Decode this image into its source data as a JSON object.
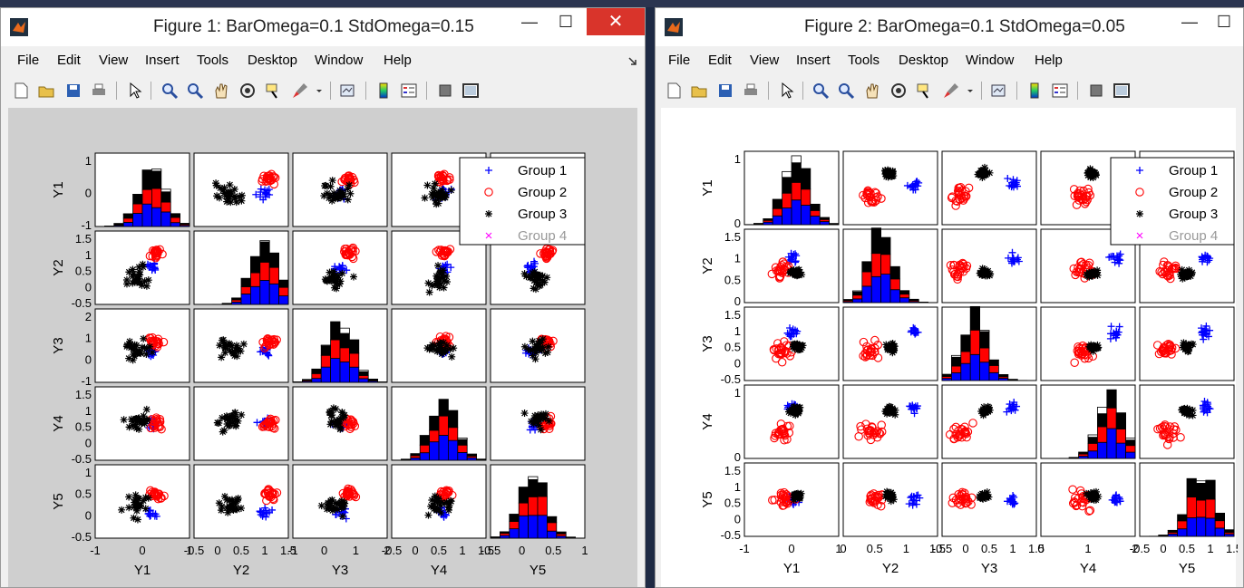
{
  "windows": [
    {
      "title": "Figure 1: BarOmega=0.1 StdOmega=0.15",
      "menu": [
        "File",
        "Edit",
        "View",
        "Insert",
        "Tools",
        "Desktop",
        "Window",
        "Help"
      ],
      "controls": {
        "minimize": "—",
        "maximize": "☐",
        "close": "✕"
      },
      "labels": [
        "Y1",
        "Y2",
        "Y3",
        "Y4",
        "Y5"
      ],
      "yticks": [
        [
          "1",
          "0",
          "-1"
        ],
        [
          "1.5",
          "1",
          "0.5",
          "0",
          "-0.5"
        ],
        [
          "2",
          "1",
          "0",
          "-1"
        ],
        [
          "1.5",
          "1",
          "0.5",
          "0",
          "-0.5"
        ],
        [
          "1",
          "0.5",
          "0",
          "-0.5"
        ]
      ],
      "xticks": [
        [
          "-1",
          "0",
          "1"
        ],
        [
          "-0.5",
          "0",
          "0.5",
          "1",
          "1.5"
        ],
        [
          "-1",
          "0",
          "1",
          "2"
        ],
        [
          "-0.5",
          "0",
          "0.5",
          "1",
          "1.5"
        ],
        [
          "-0.5",
          "0",
          "0.5",
          "1"
        ]
      ],
      "legend": [
        "Group 1",
        "Group 2",
        "Group 3",
        "Group 4"
      ],
      "colors": {
        "group1": "#0000ff",
        "group2": "#ff0000",
        "group3": "#000000",
        "group4": "#ff00ff",
        "canvas": "#cfcfcf"
      }
    },
    {
      "title": "Figure 2: BarOmega=0.1 StdOmega=0.05",
      "menu": [
        "File",
        "Edit",
        "View",
        "Insert",
        "Tools",
        "Desktop",
        "Window",
        "Help"
      ],
      "controls": {
        "minimize": "—",
        "maximize": "☐"
      },
      "labels": [
        "Y1",
        "Y2",
        "Y3",
        "Y4",
        "Y5"
      ],
      "yticks": [
        [
          "1",
          "0"
        ],
        [
          "1.5",
          "1",
          "0.5",
          "0"
        ],
        [
          "1.5",
          "1",
          "0.5",
          "0",
          "-0.5"
        ],
        [
          "1",
          "0"
        ],
        [
          "1.5",
          "1",
          "0.5",
          "0",
          "-0.5"
        ]
      ],
      "xticks": [
        [
          "-1",
          "0",
          "1"
        ],
        [
          "0",
          "0.5",
          "1",
          "1.5"
        ],
        [
          "-0.5",
          "0",
          "0.5",
          "1",
          "1.5"
        ],
        [
          "0",
          "1",
          "2"
        ],
        [
          "-0.5",
          "0",
          "0.5",
          "1",
          "1.5"
        ]
      ],
      "legend": [
        "Group 1",
        "Group 2",
        "Group 3",
        "Group 4"
      ],
      "colors": {
        "group1": "#0000ff",
        "group2": "#ff0000",
        "group3": "#000000",
        "group4": "#ff00ff",
        "canvas": "#ffffff"
      }
    }
  ]
}
